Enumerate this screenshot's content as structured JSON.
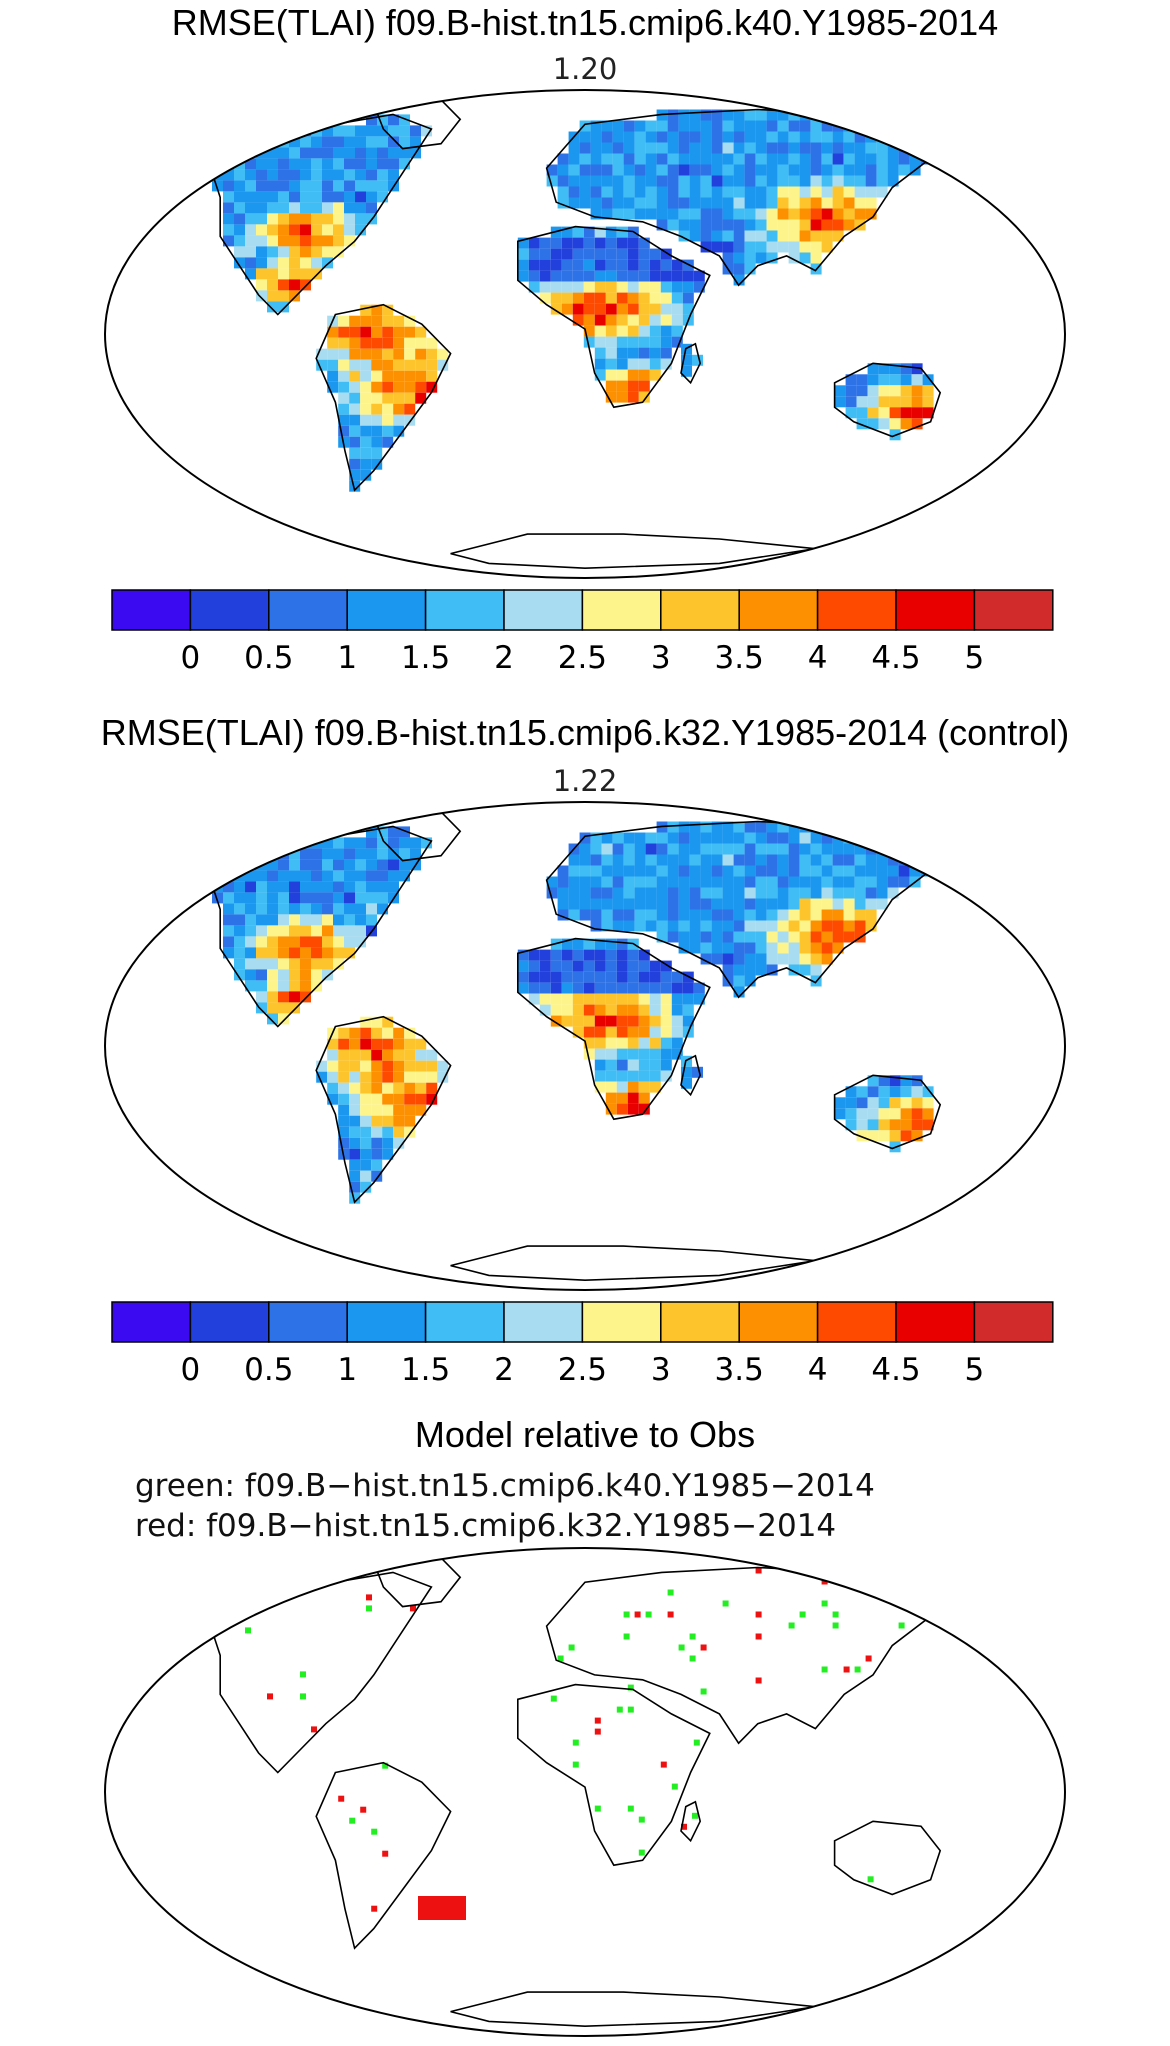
{
  "panels": [
    {
      "title": "RMSE(TLAI) f09.B-hist.tn15.cmip6.k40.Y1985-2014",
      "value": "1.20"
    },
    {
      "title": "RMSE(TLAI) f09.B-hist.tn15.cmip6.k32.Y1985-2014 (control)",
      "value": "1.22"
    }
  ],
  "colorbar": {
    "colors": [
      "#3b0af0",
      "#2241dc",
      "#2e72e8",
      "#1b97f0",
      "#40bdf4",
      "#a8dcf0",
      "#fef48c",
      "#fdc42b",
      "#fd9000",
      "#fe4a00",
      "#e80000",
      "#d22b2b"
    ],
    "labels": [
      "0",
      "0.5",
      "1",
      "1.5",
      "2",
      "2.5",
      "3",
      "3.5",
      "4",
      "4.5",
      "5"
    ]
  },
  "comparison": {
    "title": "Model relative to Obs",
    "green_label": "green:  f09.B−hist.tn15.cmip6.k40.Y1985−2014",
    "red_label": "red:  f09.B−hist.tn15.cmip6.k32.Y1985−2014",
    "green_color": "#22ee22",
    "red_color": "#ee1111"
  }
}
